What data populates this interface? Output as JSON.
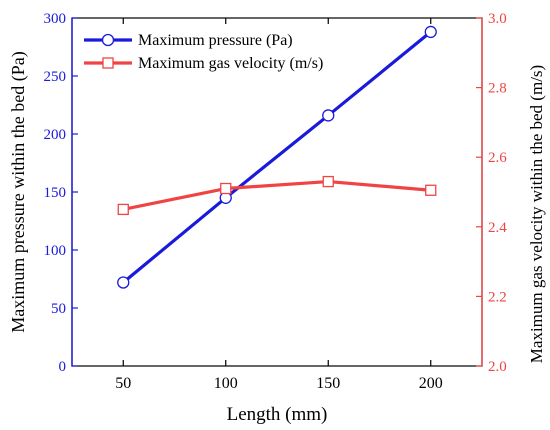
{
  "chart_data": {
    "type": "line",
    "x": [
      50,
      100,
      150,
      200
    ],
    "xlabel": "Length (mm)",
    "xlim": [
      25,
      225
    ],
    "xticks": [
      50,
      100,
      150,
      200
    ],
    "y_left": {
      "label": "Maximum pressure within the bed (Pa)",
      "lim": [
        0,
        300
      ],
      "ticks": [
        0,
        50,
        100,
        150,
        200,
        250,
        300
      ],
      "color": "#1a1adb"
    },
    "y_right": {
      "label": "Maximum gas velocity within the bed (m/s)",
      "lim": [
        2.0,
        3.0
      ],
      "ticks": [
        "2.0",
        "2.2",
        "2.4",
        "2.6",
        "2.8",
        "3.0"
      ],
      "color": "#f04444"
    },
    "series": [
      {
        "name": "Maximum pressure (Pa)",
        "axis": "left",
        "marker": "circle",
        "color": "#1a1adb",
        "values": [
          72,
          145,
          216,
          288
        ]
      },
      {
        "name": "Maximum gas velocity (m/s)",
        "axis": "right",
        "marker": "square",
        "color": "#f04444",
        "values": [
          2.45,
          2.51,
          2.53,
          2.505
        ]
      }
    ],
    "legend_position": "top-left",
    "grid": false
  }
}
